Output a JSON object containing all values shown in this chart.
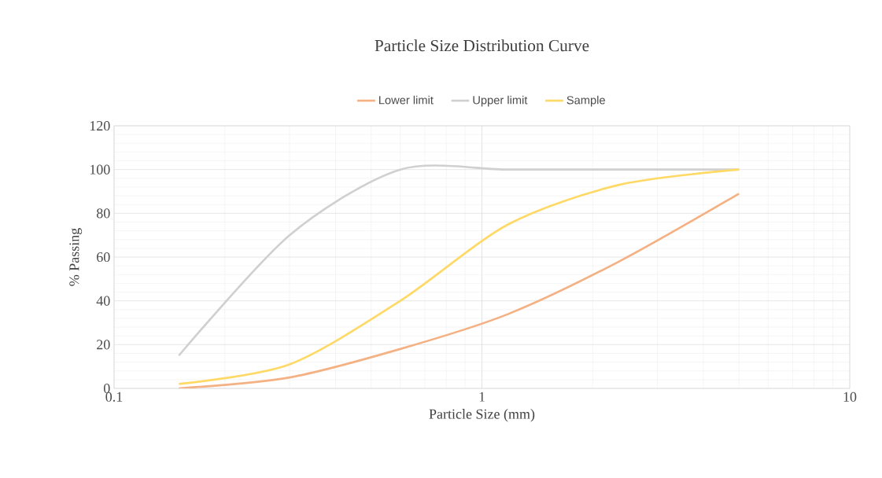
{
  "chart_data": {
    "type": "line",
    "title": "Particle Size Distribution Curve",
    "xlabel": "Particle Size (mm)",
    "ylabel": "% Passing",
    "x": [
      0.15,
      0.3,
      0.6,
      1.18,
      2.36,
      5
    ],
    "series": [
      {
        "name": "Lower limit",
        "color": "#f4b183",
        "values": [
          0,
          5,
          18,
          34,
          58,
          89
        ]
      },
      {
        "name": "Upper limit",
        "color": "#d0d0d0",
        "values": [
          15,
          70,
          100,
          100,
          100,
          100
        ]
      },
      {
        "name": "Sample",
        "color": "#ffd966",
        "values": [
          2,
          11,
          40,
          75,
          93,
          100
        ]
      }
    ],
    "xlim": [
      0.1,
      10
    ],
    "xticks": [
      0.1,
      1,
      10
    ],
    "ylim": [
      0,
      120
    ],
    "yticks": [
      0,
      20,
      40,
      60,
      80,
      100,
      120
    ],
    "log": "x",
    "grid": true,
    "legend": "top"
  }
}
